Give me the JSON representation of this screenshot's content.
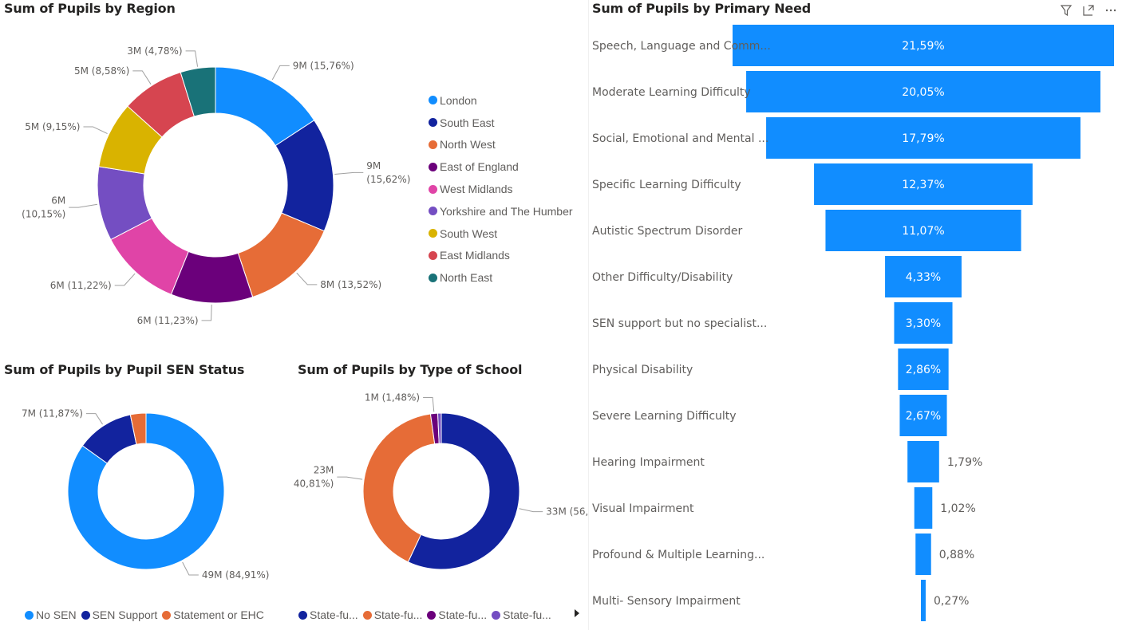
{
  "colors": {
    "blue": "#118DFF",
    "navy": "#12239E",
    "orange": "#E66C37",
    "purple": "#6B007B",
    "pink": "#E044A7",
    "violet": "#744EC2",
    "yellow": "#D9B300",
    "red": "#D64550",
    "teal": "#197278",
    "funnel": "#118DFF"
  },
  "chart_data": [
    {
      "type": "donut",
      "title": "Sum of Pupils by Region",
      "categories": [
        "London",
        "South East",
        "North West",
        "East of England",
        "West Midlands",
        "Yorkshire and The Humber",
        "South West",
        "East Midlands",
        "North East"
      ],
      "percentages": [
        15.76,
        15.62,
        13.52,
        11.23,
        11.22,
        10.15,
        9.15,
        8.58,
        4.78
      ],
      "data_labels": [
        "9M (15,76%)",
        "9M (15,62%)",
        "8M (13,52%)",
        "6M (11,23%)",
        "6M (11,22%)",
        "6M (10,15%)",
        "5M (9,15%)",
        "5M (8,58%)",
        "3M (4,78%)"
      ],
      "legend_position": "right"
    },
    {
      "type": "donut",
      "title": "Sum of Pupils by Pupil SEN Status",
      "categories": [
        "No SEN",
        "SEN Support",
        "Statement or EHC"
      ],
      "percentages": [
        84.91,
        11.87,
        3.22
      ],
      "data_labels": [
        "49M (84,91%)",
        "7M (11,87%)",
        ""
      ],
      "legend_position": "bottom"
    },
    {
      "type": "donut",
      "title": "Sum of Pupils by Type of School",
      "categories": [
        "State-fu...",
        "State-fu...",
        "State-fu...",
        "State-fu..."
      ],
      "percentages": [
        56.98,
        40.81,
        1.48,
        0.73
      ],
      "data_labels": [
        "33M (56,98%)",
        "23M (40,81%)",
        "1M (1,48%)",
        ""
      ],
      "legend_position": "bottom"
    },
    {
      "type": "funnel",
      "title": "Sum of Pupils by Primary Need",
      "categories": [
        "Speech, Language and Comm...",
        "Moderate Learning Difficulty",
        "Social, Emotional and Mental ...",
        "Specific Learning Difficulty",
        "Autistic Spectrum Disorder",
        "Other Difficulty/Disability",
        "SEN support but no specialist...",
        "Physical Disability",
        "Severe Learning Difficulty",
        "Hearing Impairment",
        "Visual Impairment",
        "Profound & Multiple Learning...",
        "Multi- Sensory Impairment"
      ],
      "values": [
        21.59,
        20.05,
        17.79,
        12.37,
        11.07,
        4.33,
        3.3,
        2.86,
        2.67,
        1.79,
        1.02,
        0.88,
        0.27
      ],
      "data_labels": [
        "21,59%",
        "20,05%",
        "17,79%",
        "12,37%",
        "11,07%",
        "4,33%",
        "3,30%",
        "2,86%",
        "2,67%",
        "1,79%",
        "1,02%",
        "0,88%",
        "0,27%"
      ]
    }
  ]
}
